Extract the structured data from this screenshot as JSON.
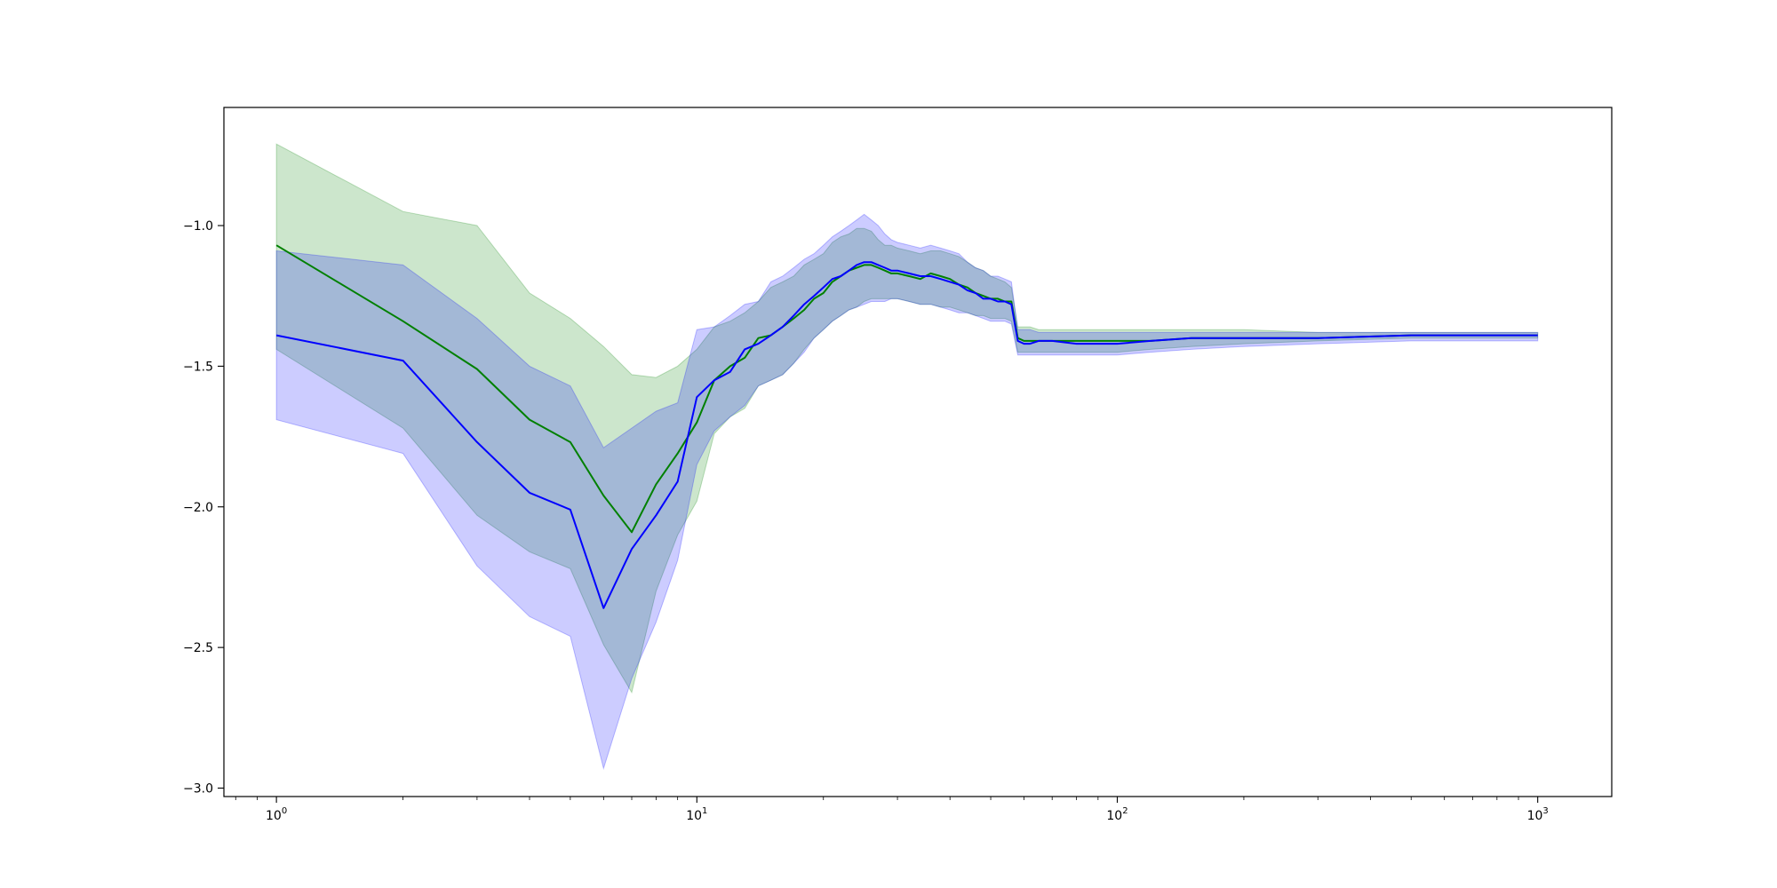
{
  "chart_data": {
    "type": "line",
    "x_scale": "log",
    "xlim": [
      0.75,
      1500
    ],
    "ylim": [
      -3.03,
      -0.58
    ],
    "grid": false,
    "legend": "none",
    "x_ticks": [
      {
        "value": 1,
        "base": "10",
        "exp": "0"
      },
      {
        "value": 10,
        "base": "10",
        "exp": "1"
      },
      {
        "value": 100,
        "base": "10",
        "exp": "2"
      },
      {
        "value": 1000,
        "base": "10",
        "exp": "3"
      }
    ],
    "y_ticks": [
      {
        "value": -1.0,
        "label": "−1.0"
      },
      {
        "value": -1.5,
        "label": "−1.5"
      },
      {
        "value": -2.0,
        "label": "−2.0"
      },
      {
        "value": -2.5,
        "label": "−2.5"
      },
      {
        "value": -3.0,
        "label": "−3.0"
      }
    ],
    "series": [
      {
        "color": "#008000",
        "band_color": "#008000",
        "band_opacity": 0.2,
        "x": [
          1,
          2,
          3,
          4,
          5,
          6,
          7,
          8,
          9,
          10,
          11,
          12,
          13,
          14,
          15,
          16,
          17,
          18,
          19,
          20,
          21,
          22,
          23,
          24,
          25,
          26,
          27,
          28,
          29,
          30,
          32,
          34,
          36,
          38,
          40,
          42,
          44,
          46,
          48,
          50,
          52,
          54,
          56,
          58,
          60,
          62,
          65,
          70,
          80,
          90,
          100,
          120,
          150,
          200,
          300,
          500,
          700,
          1000
        ],
        "y": [
          -1.07,
          -1.34,
          -1.51,
          -1.69,
          -1.77,
          -1.96,
          -2.09,
          -1.92,
          -1.81,
          -1.7,
          -1.55,
          -1.5,
          -1.47,
          -1.4,
          -1.39,
          -1.36,
          -1.33,
          -1.3,
          -1.26,
          -1.24,
          -1.2,
          -1.18,
          -1.16,
          -1.15,
          -1.14,
          -1.14,
          -1.15,
          -1.16,
          -1.17,
          -1.17,
          -1.18,
          -1.19,
          -1.17,
          -1.18,
          -1.19,
          -1.21,
          -1.22,
          -1.24,
          -1.25,
          -1.26,
          -1.26,
          -1.27,
          -1.27,
          -1.4,
          -1.41,
          -1.41,
          -1.41,
          -1.41,
          -1.41,
          -1.41,
          -1.41,
          -1.41,
          -1.4,
          -1.4,
          -1.4,
          -1.39,
          -1.39,
          -1.39
        ],
        "upper": [
          -0.71,
          -0.95,
          -1.0,
          -1.24,
          -1.33,
          -1.43,
          -1.53,
          -1.54,
          -1.5,
          -1.44,
          -1.36,
          -1.34,
          -1.31,
          -1.27,
          -1.22,
          -1.2,
          -1.18,
          -1.14,
          -1.12,
          -1.1,
          -1.06,
          -1.04,
          -1.03,
          -1.01,
          -1.01,
          -1.02,
          -1.05,
          -1.07,
          -1.07,
          -1.08,
          -1.09,
          -1.1,
          -1.09,
          -1.09,
          -1.1,
          -1.11,
          -1.13,
          -1.15,
          -1.16,
          -1.18,
          -1.19,
          -1.2,
          -1.22,
          -1.36,
          -1.36,
          -1.36,
          -1.37,
          -1.37,
          -1.37,
          -1.37,
          -1.37,
          -1.37,
          -1.37,
          -1.37,
          -1.38,
          -1.38,
          -1.38,
          -1.38
        ],
        "lower": [
          -1.44,
          -1.72,
          -2.03,
          -2.16,
          -2.22,
          -2.49,
          -2.66,
          -2.3,
          -2.1,
          -1.98,
          -1.74,
          -1.68,
          -1.65,
          -1.57,
          -1.55,
          -1.53,
          -1.49,
          -1.44,
          -1.4,
          -1.37,
          -1.34,
          -1.32,
          -1.3,
          -1.29,
          -1.27,
          -1.26,
          -1.26,
          -1.26,
          -1.26,
          -1.26,
          -1.27,
          -1.28,
          -1.28,
          -1.29,
          -1.29,
          -1.3,
          -1.31,
          -1.32,
          -1.32,
          -1.33,
          -1.33,
          -1.33,
          -1.34,
          -1.45,
          -1.45,
          -1.45,
          -1.45,
          -1.45,
          -1.45,
          -1.45,
          -1.45,
          -1.44,
          -1.43,
          -1.42,
          -1.41,
          -1.4,
          -1.4,
          -1.4
        ]
      },
      {
        "color": "#0000ff",
        "band_color": "#0000ff",
        "band_opacity": 0.2,
        "x": [
          1,
          2,
          3,
          4,
          5,
          6,
          7,
          8,
          9,
          10,
          11,
          12,
          13,
          14,
          15,
          16,
          17,
          18,
          19,
          20,
          21,
          22,
          23,
          24,
          25,
          26,
          27,
          28,
          29,
          30,
          32,
          34,
          36,
          38,
          40,
          42,
          44,
          46,
          48,
          50,
          52,
          54,
          56,
          58,
          60,
          62,
          65,
          70,
          80,
          90,
          100,
          120,
          150,
          200,
          300,
          500,
          700,
          1000
        ],
        "y": [
          -1.39,
          -1.48,
          -1.77,
          -1.95,
          -2.01,
          -2.36,
          -2.15,
          -2.03,
          -1.91,
          -1.61,
          -1.55,
          -1.52,
          -1.44,
          -1.42,
          -1.39,
          -1.36,
          -1.32,
          -1.28,
          -1.25,
          -1.22,
          -1.19,
          -1.18,
          -1.16,
          -1.14,
          -1.13,
          -1.13,
          -1.14,
          -1.15,
          -1.16,
          -1.16,
          -1.17,
          -1.18,
          -1.18,
          -1.19,
          -1.2,
          -1.21,
          -1.23,
          -1.24,
          -1.26,
          -1.26,
          -1.27,
          -1.27,
          -1.28,
          -1.41,
          -1.42,
          -1.42,
          -1.41,
          -1.41,
          -1.42,
          -1.42,
          -1.42,
          -1.41,
          -1.4,
          -1.4,
          -1.4,
          -1.39,
          -1.39,
          -1.39
        ],
        "upper": [
          -1.09,
          -1.14,
          -1.33,
          -1.5,
          -1.57,
          -1.79,
          -1.72,
          -1.66,
          -1.63,
          -1.37,
          -1.36,
          -1.32,
          -1.28,
          -1.27,
          -1.2,
          -1.18,
          -1.15,
          -1.12,
          -1.1,
          -1.07,
          -1.04,
          -1.02,
          -1.0,
          -0.98,
          -0.96,
          -0.98,
          -1.0,
          -1.03,
          -1.05,
          -1.06,
          -1.07,
          -1.08,
          -1.07,
          -1.08,
          -1.09,
          -1.1,
          -1.13,
          -1.15,
          -1.16,
          -1.18,
          -1.18,
          -1.19,
          -1.2,
          -1.37,
          -1.37,
          -1.37,
          -1.38,
          -1.38,
          -1.38,
          -1.38,
          -1.38,
          -1.38,
          -1.38,
          -1.38,
          -1.38,
          -1.38,
          -1.38,
          -1.38
        ],
        "lower": [
          -1.69,
          -1.81,
          -2.21,
          -2.39,
          -2.46,
          -2.93,
          -2.61,
          -2.41,
          -2.19,
          -1.85,
          -1.73,
          -1.68,
          -1.64,
          -1.57,
          -1.55,
          -1.53,
          -1.49,
          -1.45,
          -1.4,
          -1.37,
          -1.34,
          -1.32,
          -1.3,
          -1.29,
          -1.28,
          -1.27,
          -1.27,
          -1.27,
          -1.26,
          -1.26,
          -1.27,
          -1.28,
          -1.28,
          -1.29,
          -1.3,
          -1.31,
          -1.31,
          -1.32,
          -1.33,
          -1.34,
          -1.34,
          -1.34,
          -1.35,
          -1.46,
          -1.46,
          -1.46,
          -1.46,
          -1.46,
          -1.46,
          -1.46,
          -1.46,
          -1.45,
          -1.44,
          -1.43,
          -1.42,
          -1.41,
          -1.41,
          -1.41
        ]
      }
    ]
  }
}
